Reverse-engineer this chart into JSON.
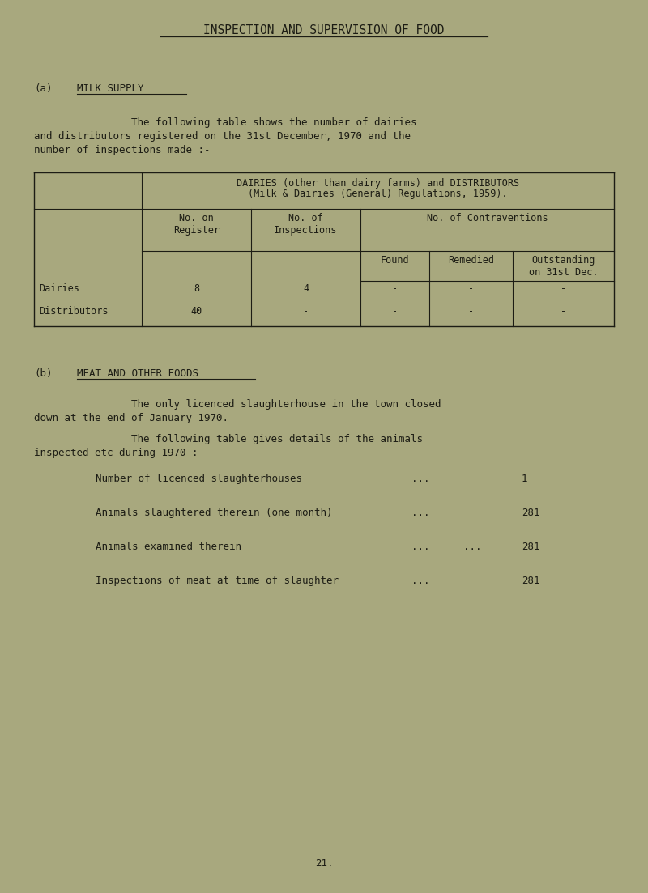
{
  "bg_color": "#a8a87e",
  "text_color": "#1c1c14",
  "title": "INSPECTION AND SUPERVISION OF FOOD",
  "section_a_label": "(a)",
  "section_a_title": "MILK SUPPLY",
  "para1_line1": "The following table shows the number of dairies",
  "para1_line2": "and distributors registered on the 31st December, 1970 and the",
  "para1_line3": "number of inspections made :-",
  "table_header1": "DAIRIES (other than dairy farms) and DISTRIBUTORS",
  "table_header2": "(Milk & Dairies (General) Regulations, 1959).",
  "col1": "No. on\nRegister",
  "col2": "No. of\nInspections",
  "col3_header": "No. of Contraventions",
  "col3a": "Found",
  "col3b": "Remedied",
  "col3c": "Outstanding\non 31st Dec.",
  "row1_label": "Dairies",
  "row1_data": [
    "8",
    "4",
    "-",
    "-",
    "-"
  ],
  "row2_label": "Distributors",
  "row2_data": [
    "40",
    "-",
    "-",
    "-",
    "-"
  ],
  "section_b_label": "(b)",
  "section_b_title": "MEAT AND OTHER FOODS",
  "para2_line1": "The only licenced slaughterhouse in the town closed",
  "para2_line2": "down at the end of January 1970.",
  "para3_line1": "The following table gives details of the animals",
  "para3_line2": "inspected etc during 1970 :",
  "list_items": [
    {
      "label": "Number of licenced slaughterhouses",
      "dots1": "...",
      "dots2": "",
      "value": "1"
    },
    {
      "label": "Animals slaughtered therein (one month)",
      "dots1": "...",
      "dots2": "",
      "value": "281"
    },
    {
      "label": "Animals examined therein",
      "dots1": "...",
      "dots2": "...",
      "value": "281"
    },
    {
      "label": "Inspections of meat at time of slaughter",
      "dots1": "...",
      "dots2": "",
      "value": "281"
    }
  ],
  "page_number": "21.",
  "font_size_title": 10.5,
  "font_size_body": 9.0,
  "font_size_small": 8.5,
  "font_family": "DejaVu Sans Mono"
}
